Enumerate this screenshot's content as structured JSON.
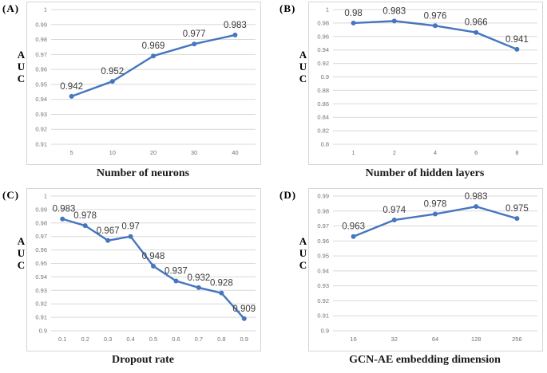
{
  "style": {
    "line_color": "#4576BE",
    "marker_color": "#4576BE",
    "gridline_color": "#D9D9D9",
    "axis_text_color": "#737373",
    "data_label_color": "#3B3B3B",
    "box_border_color": "#D6D6D6"
  },
  "chart_data": [
    {
      "panel_label": "(A)",
      "type": "line",
      "xlabel": "Number of neurons",
      "ylabel": "AUC",
      "categories": [
        "5",
        "10",
        "20",
        "30",
        "40"
      ],
      "values": [
        0.942,
        0.952,
        0.969,
        0.977,
        0.983
      ],
      "data_labels": [
        "0.942",
        "0.952",
        "0.969",
        "0.977",
        "0.983"
      ],
      "ylim": [
        0.91,
        1
      ],
      "yticks": [
        "1",
        "0.99",
        "0.98",
        "0.97",
        "0.96",
        "0.95",
        "0.94",
        "0.93",
        "0.92",
        "0.91"
      ],
      "grid": true,
      "legend": "none"
    },
    {
      "panel_label": "(B)",
      "type": "line",
      "xlabel": "Number of hidden layers",
      "ylabel": "AUC",
      "categories": [
        "1",
        "2",
        "4",
        "6",
        "8"
      ],
      "values": [
        0.98,
        0.983,
        0.976,
        0.966,
        0.941
      ],
      "data_labels": [
        "0.98",
        "0.983",
        "0.976",
        "0.966",
        "0.941"
      ],
      "ylim": [
        0.8,
        1
      ],
      "yticks": [
        "1",
        "0.98",
        "0.96",
        "0.94",
        "0.92",
        "0.9",
        "0.88",
        "0.86",
        "0.84",
        "0.82",
        "0.8"
      ],
      "grid": true,
      "legend": "none"
    },
    {
      "panel_label": "(C)",
      "type": "line",
      "xlabel": "Dropout rate",
      "ylabel": "AUC",
      "categories": [
        "0.1",
        "0.2",
        "0.3",
        "0.4",
        "0.5",
        "0.6",
        "0.7",
        "0.8",
        "0.9"
      ],
      "values": [
        0.983,
        0.978,
        0.967,
        0.97,
        0.948,
        0.937,
        0.932,
        0.928,
        0.909
      ],
      "data_labels": [
        "0.983",
        "0.978",
        "0.967",
        "0.97",
        "0.948",
        "0.937",
        "0.932",
        "0.928",
        "0.909"
      ],
      "ylim": [
        0.9,
        1
      ],
      "yticks": [
        "1",
        "0.99",
        "0.98",
        "0.97",
        "0.96",
        "0.95",
        "0.94",
        "0.93",
        "0.92",
        "0.91",
        "0.9"
      ],
      "grid": true,
      "legend": "none"
    },
    {
      "panel_label": "(D)",
      "type": "line",
      "xlabel": "GCN-AE embedding dimension",
      "ylabel": "AUC",
      "categories": [
        "16",
        "32",
        "64",
        "128",
        "256"
      ],
      "values": [
        0.963,
        0.974,
        0.978,
        0.983,
        0.975
      ],
      "data_labels": [
        "0.963",
        "0.974",
        "0.978",
        "0.983",
        "0.975"
      ],
      "ylim": [
        0.9,
        0.99
      ],
      "yticks": [
        "0.99",
        "0.98",
        "0.97",
        "0.96",
        "0.95",
        "0.94",
        "0.93",
        "0.92",
        "0.91",
        "0.9"
      ],
      "grid": true,
      "legend": "none"
    }
  ]
}
